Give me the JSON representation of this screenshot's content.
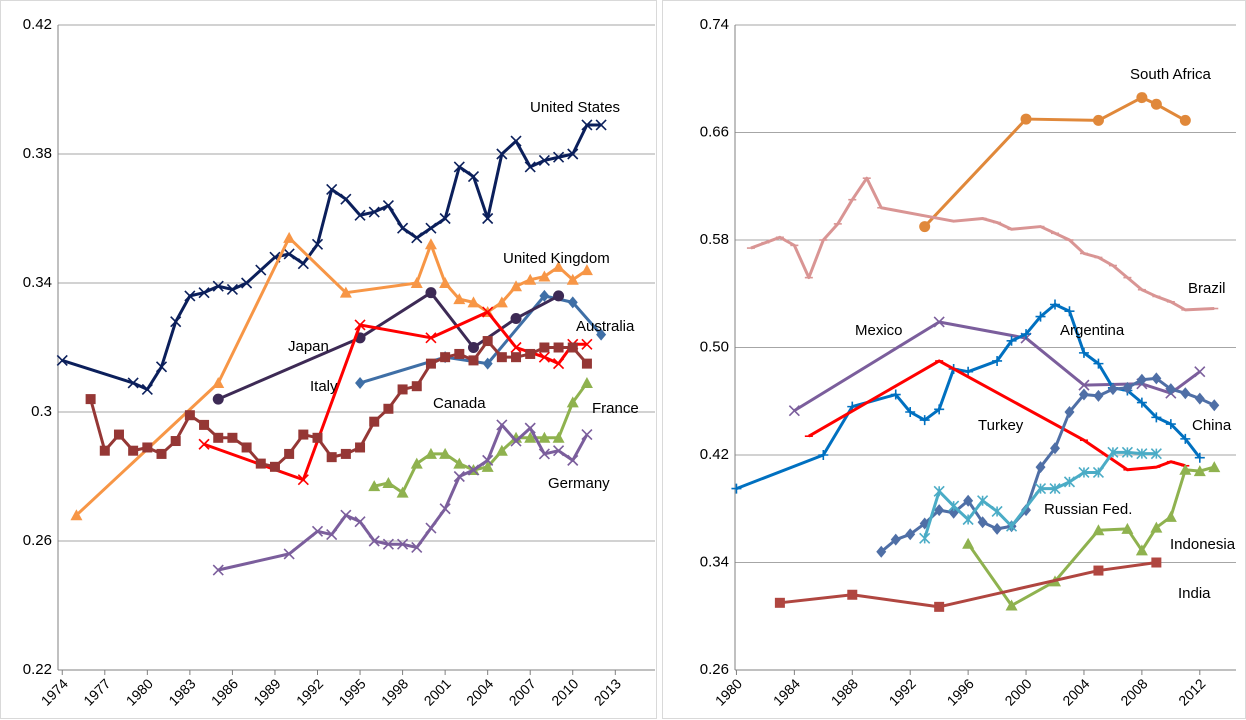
{
  "chart_data": [
    {
      "type": "line",
      "grid": true,
      "xlim": [
        1973.7,
        2015.8
      ],
      "xticks": [
        1974,
        1977,
        1980,
        1983,
        1986,
        1989,
        1992,
        1995,
        1998,
        2001,
        2004,
        2007,
        2010,
        2013
      ],
      "ylim": [
        0.22,
        0.42
      ],
      "yticks": [
        0.22,
        0.26,
        0.3,
        0.34,
        0.38,
        0.42
      ],
      "series": [
        {
          "name": "United States",
          "color": "#0b1f5b",
          "marker": "x",
          "x": [
            1974,
            1979,
            1980,
            1981,
            1982,
            1983,
            1984,
            1985,
            1986,
            1987,
            1988,
            1989,
            1990,
            1991,
            1992,
            1993,
            1994,
            1995,
            1996,
            1997,
            1998,
            1999,
            2000,
            2001,
            2002,
            2003,
            2004,
            2005,
            2006,
            2007,
            2008,
            2009,
            2010,
            2011,
            2012
          ],
          "values": [
            0.316,
            0.309,
            0.307,
            0.314,
            0.328,
            0.336,
            0.337,
            0.339,
            0.338,
            0.34,
            0.344,
            0.348,
            0.349,
            0.346,
            0.352,
            0.369,
            0.366,
            0.361,
            0.362,
            0.364,
            0.357,
            0.354,
            0.357,
            0.36,
            0.376,
            0.373,
            0.36,
            0.38,
            0.384,
            0.376,
            0.378,
            0.379,
            0.38,
            0.389,
            0.389
          ]
        },
        {
          "name": "United Kingdom",
          "color": "#f79646",
          "marker": "triangle",
          "x": [
            1975,
            1985,
            1990,
            1994,
            1999,
            2000,
            2001,
            2002,
            2003,
            2004,
            2005,
            2006,
            2007,
            2008,
            2009,
            2010,
            2011
          ],
          "values": [
            0.268,
            0.309,
            0.354,
            0.337,
            0.34,
            0.352,
            0.34,
            0.335,
            0.334,
            0.331,
            0.334,
            0.339,
            0.341,
            0.342,
            0.345,
            0.341,
            0.344
          ]
        },
        {
          "name": "Australia",
          "color": "#3f6fa6",
          "marker": "diamond",
          "x": [
            1995,
            2001,
            2004,
            2008,
            2010,
            2012
          ],
          "values": [
            0.309,
            0.317,
            0.315,
            0.336,
            0.334,
            0.324
          ]
        },
        {
          "name": "Japan",
          "color": "#3d2a55",
          "marker": "circle",
          "x": [
            1985,
            1995,
            2000,
            2003,
            2006,
            2009
          ],
          "values": [
            0.304,
            0.323,
            0.337,
            0.32,
            0.329,
            0.336
          ]
        },
        {
          "name": "Italy",
          "color": "#ff0000",
          "marker": "x",
          "x": [
            1984,
            1991,
            1995,
            2000,
            2004,
            2006,
            2008,
            2009,
            2010,
            2011
          ],
          "values": [
            0.29,
            0.279,
            0.327,
            0.323,
            0.331,
            0.32,
            0.317,
            0.315,
            0.321,
            0.321
          ]
        },
        {
          "name": "Canada",
          "color": "#953735",
          "marker": "square",
          "x": [
            1976,
            1977,
            1978,
            1979,
            1980,
            1981,
            1982,
            1983,
            1984,
            1985,
            1986,
            1987,
            1988,
            1989,
            1990,
            1991,
            1992,
            1993,
            1994,
            1995,
            1996,
            1997,
            1998,
            1999,
            2000,
            2001,
            2002,
            2003,
            2004,
            2005,
            2006,
            2007,
            2008,
            2009,
            2010,
            2011
          ],
          "values": [
            0.304,
            0.288,
            0.293,
            0.288,
            0.289,
            0.287,
            0.291,
            0.299,
            0.296,
            0.292,
            0.292,
            0.289,
            0.284,
            0.283,
            0.287,
            0.293,
            0.292,
            0.286,
            0.287,
            0.289,
            0.297,
            0.301,
            0.307,
            0.308,
            0.315,
            0.317,
            0.318,
            0.316,
            0.322,
            0.317,
            0.317,
            0.318,
            0.32,
            0.32,
            0.32,
            0.315
          ]
        },
        {
          "name": "France",
          "color": "#8fb24f",
          "marker": "triangle",
          "x": [
            1996,
            1997,
            1998,
            1999,
            2000,
            2001,
            2002,
            2003,
            2004,
            2005,
            2006,
            2007,
            2008,
            2009,
            2010,
            2011
          ],
          "values": [
            0.277,
            0.278,
            0.275,
            0.284,
            0.287,
            0.287,
            0.284,
            0.282,
            0.283,
            0.288,
            0.292,
            0.292,
            0.292,
            0.292,
            0.303,
            0.309
          ]
        },
        {
          "name": "Germany",
          "color": "#7b5e9c",
          "marker": "x",
          "x": [
            1985,
            1990,
            1992,
            1993,
            1994,
            1995,
            1996,
            1997,
            1998,
            1999,
            2000,
            2001,
            2002,
            2003,
            2004,
            2005,
            2006,
            2007,
            2008,
            2009,
            2010,
            2011
          ],
          "values": [
            0.251,
            0.256,
            0.263,
            0.262,
            0.268,
            0.266,
            0.26,
            0.259,
            0.259,
            0.258,
            0.264,
            0.27,
            0.28,
            0.282,
            0.285,
            0.296,
            0.291,
            0.295,
            0.287,
            0.288,
            0.285,
            0.293
          ]
        }
      ]
    },
    {
      "type": "line",
      "grid": true,
      "xlim": [
        1979.9,
        2014.5
      ],
      "xticks": [
        1980,
        1984,
        1988,
        1992,
        1996,
        2000,
        2004,
        2008,
        2012
      ],
      "ylim": [
        0.26,
        0.74
      ],
      "yticks": [
        0.26,
        0.34,
        0.42,
        {
          "value": 0.5,
          "label": "0.50"
        },
        0.58,
        0.66,
        0.74
      ],
      "series": [
        {
          "name": "South Africa",
          "color": "#e0883a",
          "marker": "circle",
          "x": [
            1993,
            2000,
            2005,
            2008,
            2009,
            2011
          ],
          "values": [
            0.59,
            0.67,
            0.669,
            0.686,
            0.681,
            0.669
          ]
        },
        {
          "name": "Brazil",
          "color": "#d99594",
          "marker": "dash",
          "x": [
            1981,
            1982,
            1983,
            1984,
            1985,
            1986,
            1987,
            1988,
            1989,
            1990,
            1993,
            1995,
            1997,
            1998,
            1999,
            2001,
            2002,
            2003,
            2004,
            2005,
            2006,
            2007,
            2008,
            2009,
            2010,
            2011,
            2013
          ],
          "values": [
            0.574,
            0.578,
            0.582,
            0.576,
            0.552,
            0.58,
            0.592,
            0.61,
            0.626,
            0.604,
            0.598,
            0.594,
            0.596,
            0.593,
            0.588,
            0.59,
            0.585,
            0.58,
            0.57,
            0.567,
            0.561,
            0.552,
            0.543,
            0.538,
            0.534,
            0.528,
            0.529
          ]
        },
        {
          "name": "Mexico",
          "color": "#7b5e9c",
          "marker": "x",
          "x": [
            1984,
            1994,
            2000,
            2004,
            2008,
            2010,
            2012
          ],
          "values": [
            0.453,
            0.519,
            0.507,
            0.472,
            0.473,
            0.466,
            0.482
          ]
        },
        {
          "name": "Argentina",
          "color": "#0070c0",
          "marker": "plus",
          "x": [
            1980,
            1986,
            1988,
            1991,
            1992,
            1993,
            1994,
            1995,
            1996,
            1998,
            1999,
            2000,
            2001,
            2002,
            2003,
            2004,
            2005,
            2006,
            2007,
            2008,
            2009,
            2010,
            2011,
            2012
          ],
          "values": [
            0.395,
            0.42,
            0.456,
            0.465,
            0.452,
            0.446,
            0.454,
            0.484,
            0.482,
            0.49,
            0.505,
            0.51,
            0.523,
            0.532,
            0.527,
            0.496,
            0.488,
            0.47,
            0.468,
            0.459,
            0.448,
            0.443,
            0.432,
            0.418
          ]
        },
        {
          "name": "Turkey",
          "color": "#ff0000",
          "marker": "dash",
          "x": [
            1985,
            1994,
            2004,
            2007,
            2009,
            2010,
            2011
          ],
          "values": [
            0.434,
            0.49,
            0.431,
            0.409,
            0.411,
            0.415,
            0.412
          ]
        },
        {
          "name": "China",
          "color": "#4f6fa6",
          "marker": "diamond",
          "x": [
            1990,
            1991,
            1992,
            1993,
            1994,
            1995,
            1996,
            1997,
            1998,
            1999,
            2000,
            2001,
            2002,
            2003,
            2004,
            2005,
            2006,
            2007,
            2008,
            2009,
            2010,
            2011,
            2012,
            2013
          ],
          "values": [
            0.348,
            0.357,
            0.361,
            0.369,
            0.379,
            0.377,
            0.386,
            0.37,
            0.365,
            0.367,
            0.379,
            0.411,
            0.425,
            0.452,
            0.465,
            0.464,
            0.469,
            0.47,
            0.476,
            0.477,
            0.469,
            0.466,
            0.462,
            0.457
          ]
        },
        {
          "name": "Russian Fed.",
          "color": "#4bacc6",
          "marker": "star",
          "x": [
            1993,
            1994,
            1995,
            1996,
            1997,
            1998,
            1999,
            2001,
            2002,
            2003,
            2004,
            2005,
            2006,
            2007,
            2008,
            2009
          ],
          "values": [
            0.358,
            0.393,
            0.382,
            0.372,
            0.386,
            0.378,
            0.367,
            0.395,
            0.395,
            0.4,
            0.407,
            0.407,
            0.422,
            0.422,
            0.421,
            0.421
          ]
        },
        {
          "name": "Indonesia",
          "color": "#8fb24f",
          "marker": "triangle",
          "x": [
            1996,
            1999,
            2002,
            2005,
            2007,
            2008,
            2009,
            2010,
            2011,
            2012,
            2013
          ],
          "values": [
            0.354,
            0.308,
            0.326,
            0.364,
            0.365,
            0.349,
            0.366,
            0.374,
            0.409,
            0.408,
            0.411
          ]
        },
        {
          "name": "India",
          "color": "#b04640",
          "marker": "square",
          "x": [
            1983,
            1988,
            1994,
            2005,
            2009
          ],
          "values": [
            0.31,
            0.316,
            0.307,
            0.334,
            0.34
          ]
        }
      ]
    }
  ]
}
